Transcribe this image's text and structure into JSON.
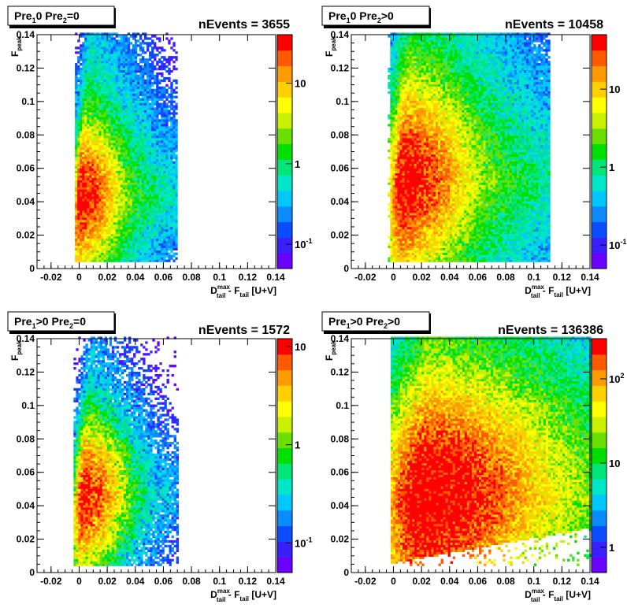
{
  "chart_data": [
    {
      "type": "heatmap",
      "title": {
        "pre1": "0",
        "pre2": "=0",
        "text": "Pre1=0 Pre2=0"
      },
      "n_events_label": "nEvents = 3655",
      "xlabel": {
        "main": "D",
        "sup": "max",
        "sub": "tail",
        "rest": " - F",
        "sub2": "tail",
        "suffix": " [U+V]"
      },
      "ylabel": {
        "main": "F",
        "sub": "peak"
      },
      "xlim": [
        -0.03,
        0.14
      ],
      "ylim": [
        0,
        0.14
      ],
      "x_ticks": [
        "-0.02",
        "0",
        "0.02",
        "0.04",
        "0.06",
        "0.08",
        "0.1",
        "0.12",
        "0.14"
      ],
      "x_tick_values": [
        -0.02,
        0,
        0.02,
        0.04,
        0.06,
        0.08,
        0.1,
        0.12,
        0.14
      ],
      "y_ticks": [
        "0",
        "0.02",
        "0.04",
        "0.06",
        "0.08",
        "0.1",
        "0.12",
        "0.14"
      ],
      "y_tick_values": [
        0,
        0.02,
        0.04,
        0.06,
        0.08,
        0.1,
        0.12,
        0.14
      ],
      "z_scale": "log",
      "zlim": [
        0.05,
        40
      ],
      "z_ticks": [
        "10",
        "1",
        "10^-1"
      ],
      "z_tick_values": [
        10,
        1,
        0.1
      ],
      "distribution": {
        "peak_x": 0.0,
        "peak_y": 0.042,
        "spread_x_left": 0.002,
        "spread_x_right": 0.012,
        "spread_y": 0.018,
        "peak_z": 30,
        "x_min": -0.003,
        "x_max": 0.07,
        "y_max": 0.14,
        "tilt": 0.35,
        "floor_x": 0.0
      }
    },
    {
      "type": "heatmap",
      "title": {
        "pre1": "0",
        "pre2": ">0",
        "text": "Pre1=0 Pre2>0"
      },
      "n_events_label": "nEvents = 10458",
      "xlabel": {
        "main": "D",
        "sup": "max",
        "sub": "tail",
        "rest": " - F",
        "sub2": "tail",
        "suffix": " [U+V]"
      },
      "ylabel": {
        "main": "F",
        "sub": "peak"
      },
      "xlim": [
        -0.03,
        0.14
      ],
      "ylim": [
        0,
        0.14
      ],
      "x_ticks": [
        "-0.02",
        "0",
        "0.02",
        "0.04",
        "0.06",
        "0.08",
        "0.1",
        "0.12",
        "0.14"
      ],
      "x_tick_values": [
        -0.02,
        0,
        0.02,
        0.04,
        0.06,
        0.08,
        0.1,
        0.12,
        0.14
      ],
      "y_ticks": [
        "0",
        "0.02",
        "0.04",
        "0.06",
        "0.08",
        "0.1",
        "0.12",
        "0.14"
      ],
      "y_tick_values": [
        0,
        0.02,
        0.04,
        0.06,
        0.08,
        0.1,
        0.12,
        0.14
      ],
      "z_scale": "log",
      "zlim": [
        0.05,
        50
      ],
      "z_ticks": [
        "10",
        "1",
        "10^-1"
      ],
      "z_tick_values": [
        10,
        1,
        0.1
      ],
      "distribution": {
        "peak_x": 0.006,
        "peak_y": 0.052,
        "spread_x_left": 0.004,
        "spread_x_right": 0.02,
        "spread_y": 0.024,
        "peak_z": 40,
        "x_min": -0.004,
        "x_max": 0.11,
        "y_max": 0.14,
        "tilt": 0.3,
        "floor_x": 0.0
      }
    },
    {
      "type": "heatmap",
      "title": {
        "pre1": ">0",
        "pre2": "=0",
        "text": "Pre1>0 Pre2=0"
      },
      "n_events_label": "nEvents = 1572",
      "xlabel": {
        "main": "D",
        "sup": "max",
        "sub": "tail",
        "rest": " - F",
        "sub2": "tail",
        "suffix": " [U+V]"
      },
      "ylabel": {
        "main": "F",
        "sub": "peak"
      },
      "xlim": [
        -0.03,
        0.14
      ],
      "ylim": [
        0,
        0.14
      ],
      "x_ticks": [
        "-0.02",
        "0",
        "0.02",
        "0.04",
        "0.06",
        "0.08",
        "0.1",
        "0.12",
        "0.14"
      ],
      "x_tick_values": [
        -0.02,
        0,
        0.02,
        0.04,
        0.06,
        0.08,
        0.1,
        0.12,
        0.14
      ],
      "y_ticks": [
        "0",
        "0.02",
        "0.04",
        "0.06",
        "0.08",
        "0.1",
        "0.12",
        "0.14"
      ],
      "y_tick_values": [
        0,
        0.02,
        0.04,
        0.06,
        0.08,
        0.1,
        0.12,
        0.14
      ],
      "z_scale": "log",
      "zlim": [
        0.05,
        12
      ],
      "z_ticks": [
        "10",
        "1",
        "10^-1"
      ],
      "z_tick_values": [
        10,
        1,
        0.1
      ],
      "distribution": {
        "peak_x": 0.002,
        "peak_y": 0.045,
        "spread_x_left": 0.003,
        "spread_x_right": 0.014,
        "spread_y": 0.02,
        "peak_z": 8,
        "x_min": -0.004,
        "x_max": 0.07,
        "y_max": 0.14,
        "tilt": 0.3,
        "floor_x": -0.002
      }
    },
    {
      "type": "heatmap",
      "title": {
        "pre1": ">0",
        "pre2": ">0",
        "text": "Pre1>0 Pre2>0"
      },
      "n_events_label": "nEvents = 136386",
      "xlabel": {
        "main": "D",
        "sup": "max",
        "sub": "tail",
        "rest": " - F",
        "sub2": "tail",
        "suffix": " [U+V]"
      },
      "ylabel": {
        "main": "F",
        "sub": "peak"
      },
      "xlim": [
        -0.03,
        0.14
      ],
      "ylim": [
        0,
        0.14
      ],
      "x_ticks": [
        "-0.02",
        "0",
        "0.02",
        "0.04",
        "0.06",
        "0.08",
        "0.1",
        "0.12",
        "0.14"
      ],
      "x_tick_values": [
        -0.02,
        0,
        0.02,
        0.04,
        0.06,
        0.08,
        0.1,
        0.12,
        0.14
      ],
      "y_ticks": [
        "0",
        "0.02",
        "0.04",
        "0.06",
        "0.08",
        "0.1",
        "0.12",
        "0.14"
      ],
      "y_tick_values": [
        0,
        0.02,
        0.04,
        0.06,
        0.08,
        0.1,
        0.12,
        0.14
      ],
      "z_scale": "log",
      "zlim": [
        0.5,
        300
      ],
      "z_ticks": [
        "10^2",
        "10",
        "1"
      ],
      "z_tick_values": [
        100,
        10,
        1
      ],
      "distribution": {
        "peak_x": 0.02,
        "peak_y": 0.045,
        "spread_x_left": 0.012,
        "spread_x_right": 0.04,
        "spread_y": 0.03,
        "peak_z": 300,
        "x_min": -0.002,
        "x_max": 0.14,
        "y_max": 0.14,
        "tilt": 0.45,
        "floor_x": -0.001
      }
    }
  ],
  "palette": [
    "#6a00ff",
    "#3a1fff",
    "#0a4cff",
    "#0a8cff",
    "#00c8ff",
    "#00e6c8",
    "#00e67a",
    "#00e000",
    "#6ae000",
    "#c8f000",
    "#ffff00",
    "#ffd000",
    "#ff9a00",
    "#ff5a00",
    "#ff0000"
  ]
}
